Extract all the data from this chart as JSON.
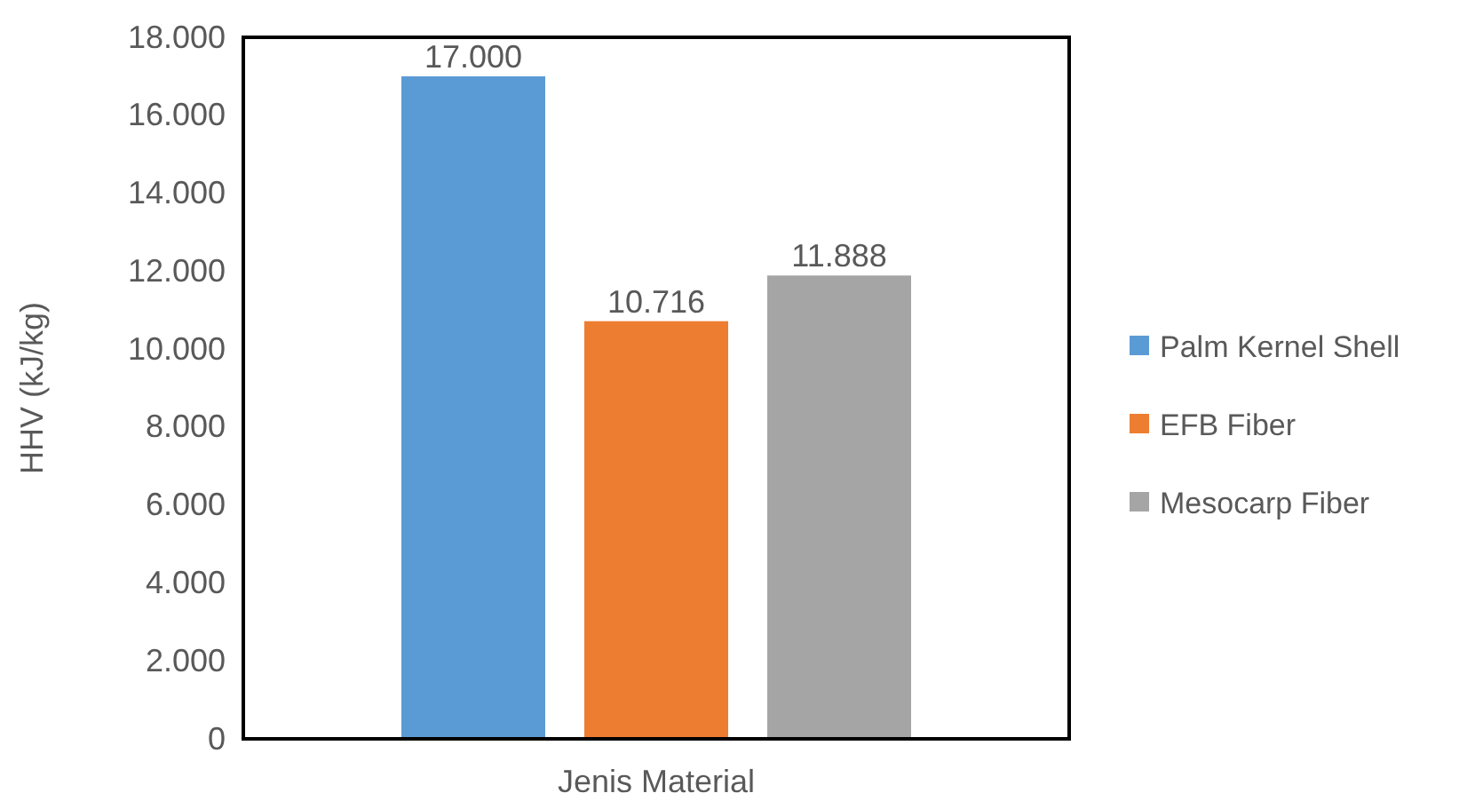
{
  "chart_data": {
    "type": "bar",
    "ylabel": "HHV (kJ/kg)",
    "xlabel": "Jenis Material",
    "categories": [
      null
    ],
    "series": [
      {
        "name": "Palm Kernel Shell",
        "color": "#5b9bd5",
        "values": [
          17000
        ],
        "value_labels": [
          "17.000"
        ]
      },
      {
        "name": "EFB Fiber",
        "color": "#ed7d31",
        "values": [
          10716
        ],
        "value_labels": [
          "10.716"
        ]
      },
      {
        "name": "Mesocarp Fiber",
        "color": "#a5a5a5",
        "values": [
          11888
        ],
        "value_labels": [
          "11.888"
        ]
      }
    ],
    "ylim": [
      0,
      18000
    ],
    "yticks": [
      {
        "value": 0,
        "label": "0"
      },
      {
        "value": 2000,
        "label": "2.000"
      },
      {
        "value": 4000,
        "label": "4.000"
      },
      {
        "value": 6000,
        "label": "6.000"
      },
      {
        "value": 8000,
        "label": "8.000"
      },
      {
        "value": 10000,
        "label": "10.000"
      },
      {
        "value": 12000,
        "label": "12.000"
      },
      {
        "value": 14000,
        "label": "14.000"
      },
      {
        "value": 16000,
        "label": "16.000"
      },
      {
        "value": 18000,
        "label": "18.000"
      }
    ],
    "grid": false,
    "legend": "right"
  }
}
